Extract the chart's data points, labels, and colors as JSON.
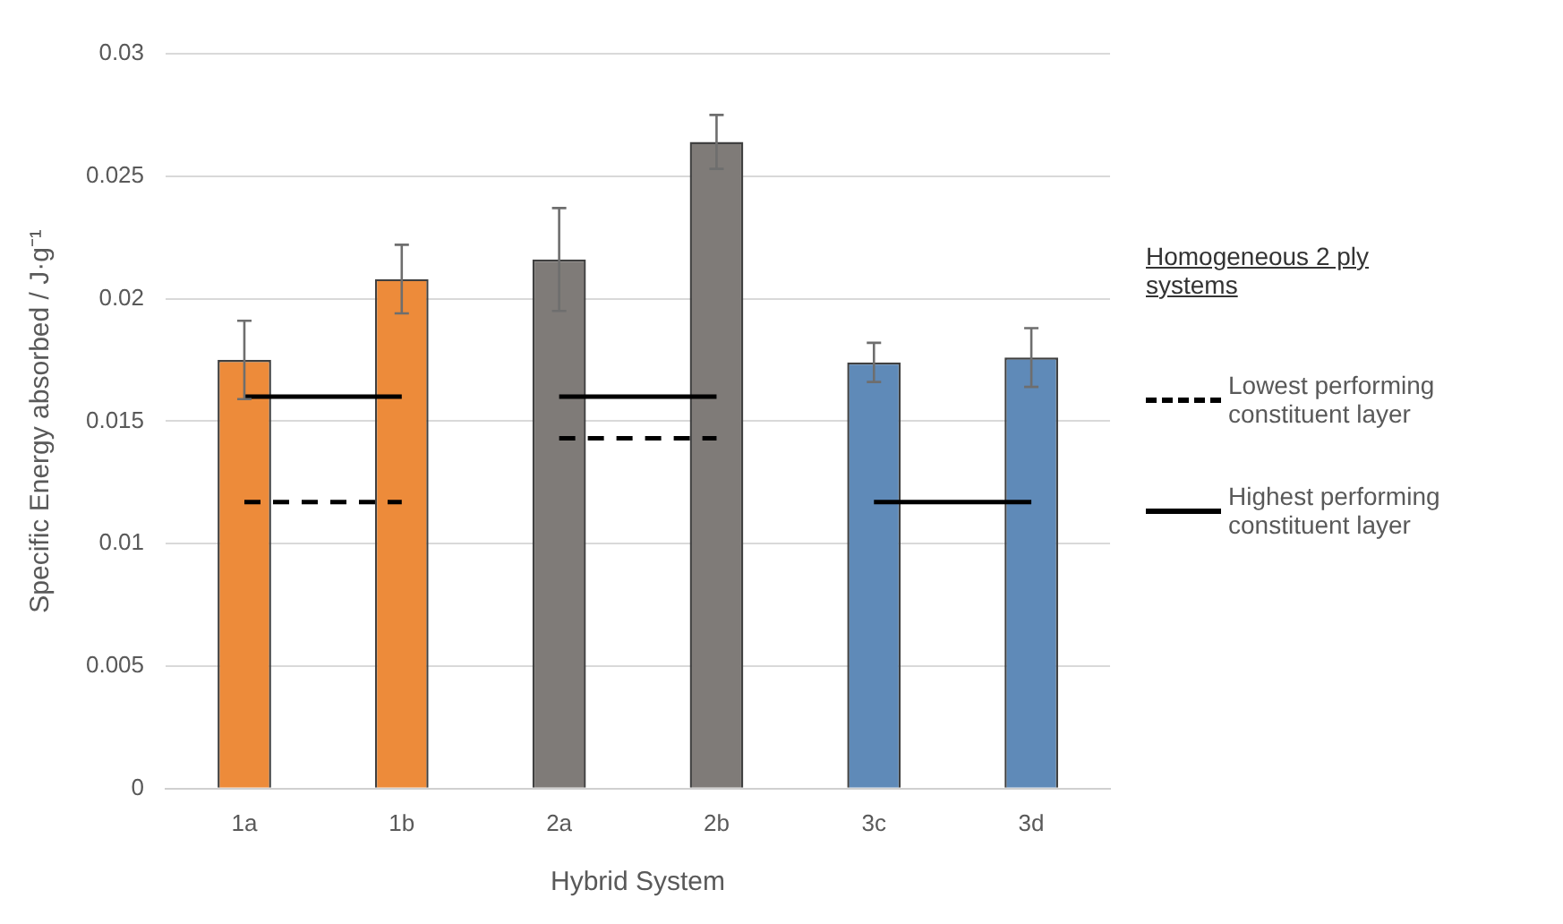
{
  "chart_data": {
    "type": "bar",
    "xlabel": "Hybrid System",
    "ylabel": "Specific Energy absorbed / J·g⁻¹",
    "categories": [
      "1a",
      "1b",
      "2a",
      "2b",
      "3c",
      "3d"
    ],
    "ylim": [
      0,
      0.03
    ],
    "yticks": [
      0,
      0.005,
      0.01,
      0.015,
      0.02,
      0.025,
      0.03
    ],
    "grid": "y",
    "legend": "right",
    "legend_title": "Homogeneous 2 ply systems",
    "marker": "none",
    "series": [
      {
        "colors": [
          "#ed8b3a",
          "#ed8b3a",
          "#7f7b78",
          "#7f7b78",
          "#5f8ab8",
          "#5f8ab8"
        ],
        "values": [
          0.0175,
          0.0208,
          0.0216,
          0.0264,
          0.0174,
          0.0176
        ],
        "errors": [
          0.0016,
          0.0014,
          0.0021,
          0.0011,
          0.0008,
          0.0012
        ]
      },
      {
        "type": "line",
        "name": "Lowest performing constituent layer",
        "color": "#000000",
        "line_style": "dashed",
        "values": [
          0.0117,
          0.0117,
          null,
          null,
          null,
          null
        ]
      },
      {
        "type": "line",
        "color": "#000000",
        "line_style": "dashed",
        "values": [
          null,
          null,
          0.0143,
          0.0143,
          null,
          null
        ]
      },
      {
        "type": "line",
        "name": "Highest performing constituent layer",
        "color": "#000000",
        "line_style": "solid",
        "values": [
          0.016,
          0.016,
          null,
          null,
          null,
          null
        ]
      },
      {
        "type": "line",
        "color": "#000000",
        "line_style": "solid",
        "values": [
          null,
          null,
          0.016,
          0.016,
          null,
          null
        ]
      },
      {
        "type": "line",
        "color": "#000000",
        "line_style": "solid",
        "values": [
          null,
          null,
          null,
          null,
          0.0117,
          0.0117
        ]
      }
    ]
  }
}
